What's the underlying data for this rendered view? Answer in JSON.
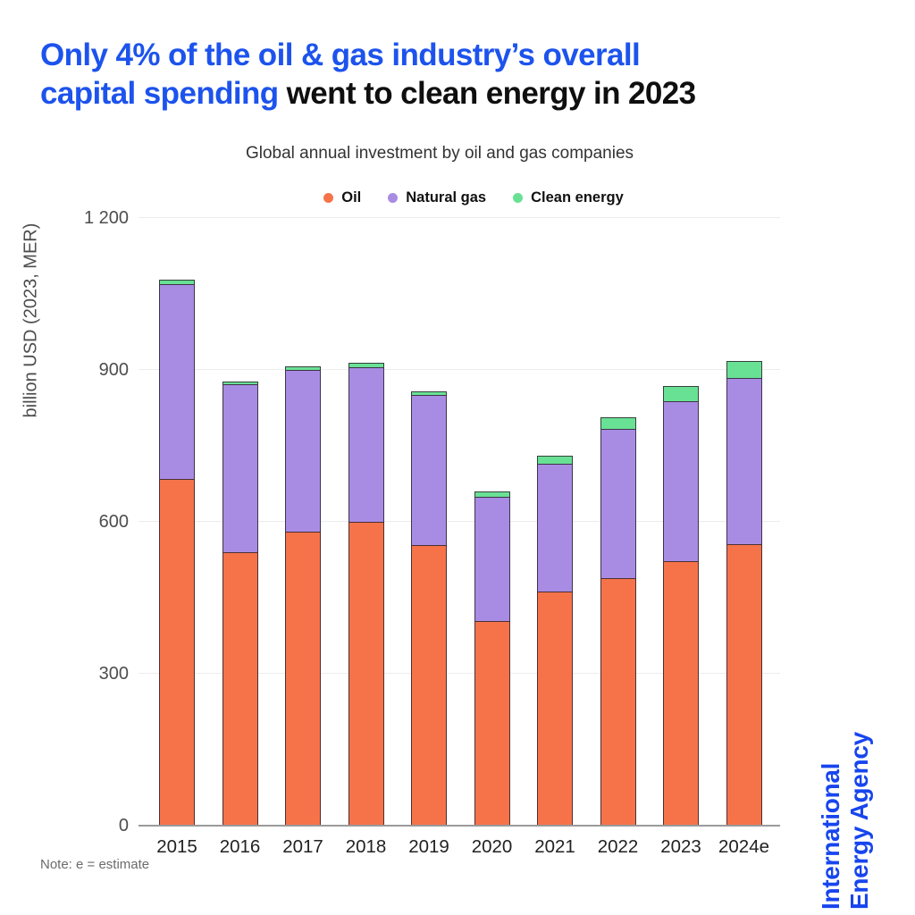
{
  "title": {
    "line1_blue": "Only 4% of the oil & gas industry’s overall",
    "line2_blue": "capital spending",
    "line2_black": " went to clean energy in 2023",
    "highlight_color": "#1d53ed"
  },
  "subtitle": "Global annual investment by oil and gas companies",
  "note": "Note: e = estimate",
  "branding": {
    "line1": "International",
    "line2": "Energy Agency",
    "color": "#1745ee"
  },
  "chart_data": {
    "type": "bar",
    "stacked": true,
    "title": "Global annual investment by oil and gas companies",
    "xlabel": "",
    "ylabel": "billion USD (2023, MER)",
    "ylim": [
      0,
      1200
    ],
    "yticks": [
      0,
      300,
      600,
      900,
      1200
    ],
    "ytick_labels": [
      "0",
      "300",
      "600",
      "900",
      "1 200"
    ],
    "grid": true,
    "legend_position": "top",
    "categories": [
      "2015",
      "2016",
      "2017",
      "2018",
      "2019",
      "2020",
      "2021",
      "2022",
      "2023",
      "2024e"
    ],
    "series": [
      {
        "name": "Oil",
        "color": "#f6734a",
        "values": [
          685,
          540,
          580,
          600,
          554,
          405,
          462,
          489,
          522,
          556
        ]
      },
      {
        "name": "Natural gas",
        "color": "#a88ce4",
        "values": [
          385,
          332,
          320,
          306,
          296,
          245,
          253,
          295,
          316,
          328
        ]
      },
      {
        "name": "Clean energy",
        "color": "#69e195",
        "values": [
          8,
          6,
          7,
          8,
          7,
          11,
          16,
          23,
          30,
          34
        ]
      }
    ],
    "totals": [
      1078,
      878,
      907,
      914,
      857,
      661,
      731,
      807,
      868,
      918
    ]
  }
}
